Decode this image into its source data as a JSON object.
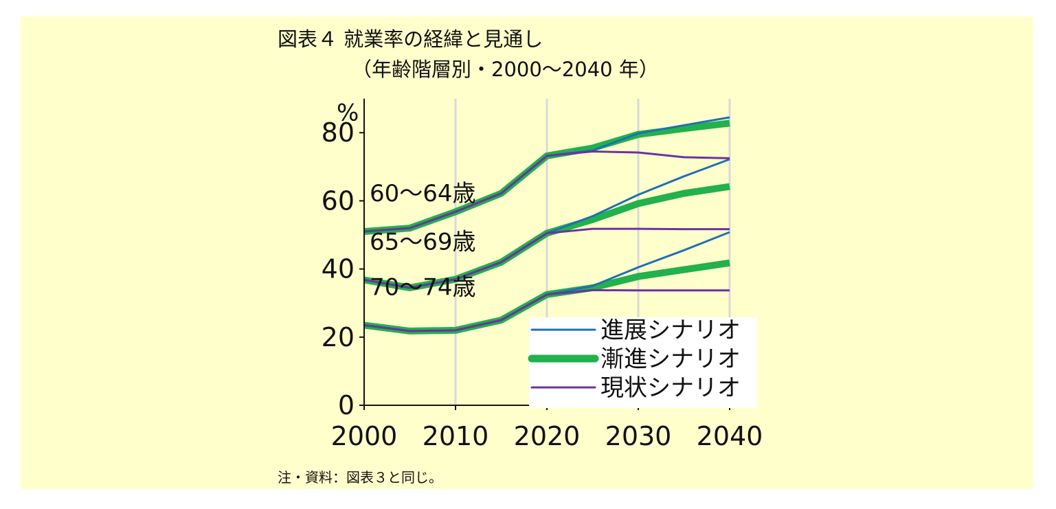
{
  "header": {
    "title_line1": "図表４ 就業率の経緯と見通し",
    "title_line2": "（年齢階層別・2000～2040 年）"
  },
  "footer": {
    "note": "注・資料：図表３と同じ。"
  },
  "colors": {
    "background": "#ffffcc",
    "advance": "#1f6fb5",
    "gradual": "#22b14c",
    "status_quo": "#7030a0",
    "grid": "#d9d9d9"
  },
  "chart_data": {
    "type": "line",
    "unit_label": "%",
    "x": [
      2000,
      2005,
      2010,
      2015,
      2020,
      2025,
      2030,
      2035,
      2040
    ],
    "xticks": [
      "2000",
      "2010",
      "2020",
      "2030",
      "2040"
    ],
    "yticks": [
      "0",
      "20",
      "40",
      "60",
      "80"
    ],
    "xlim": [
      2000,
      2040
    ],
    "ylim": [
      0,
      90
    ],
    "grid": "vertical",
    "legend_position": "bottom-right",
    "legend": [
      {
        "key": "advance",
        "label": "進展シナリオ"
      },
      {
        "key": "gradual",
        "label": "漸進シナリオ"
      },
      {
        "key": "status_quo",
        "label": "現状シナリオ"
      }
    ],
    "groups": [
      {
        "label": "60～64歳",
        "advance": [
          51,
          52,
          56.8,
          62.2,
          73.2,
          74.8,
          79.8,
          82.2,
          84.5
        ],
        "gradual": [
          51,
          52,
          56.8,
          62.2,
          73.2,
          75.5,
          79.5,
          81.2,
          82.8
        ],
        "status_quo": [
          51,
          52,
          56.8,
          62.2,
          73.2,
          74.5,
          74.2,
          72.8,
          72.5
        ]
      },
      {
        "label": "65～69歳",
        "advance": [
          36.8,
          34.5,
          37,
          42,
          50.5,
          55.5,
          61.8,
          67.2,
          72.2
        ],
        "gradual": [
          36.8,
          34.5,
          37,
          42,
          50.5,
          54.5,
          59.2,
          62.2,
          64.2
        ],
        "status_quo": [
          36.8,
          34.5,
          37,
          42,
          50.5,
          51.8,
          51.8,
          51.7,
          51.7
        ]
      },
      {
        "label": "70～74歳",
        "advance": [
          23.5,
          21.8,
          22,
          25,
          32.5,
          35,
          40.5,
          45.5,
          50.8
        ],
        "gradual": [
          23.5,
          21.8,
          22,
          25,
          32.5,
          34.5,
          37.8,
          39.8,
          41.8
        ],
        "status_quo": [
          23.5,
          21.8,
          22,
          25,
          32.5,
          33.8,
          33.7,
          33.7,
          33.7
        ]
      }
    ]
  }
}
